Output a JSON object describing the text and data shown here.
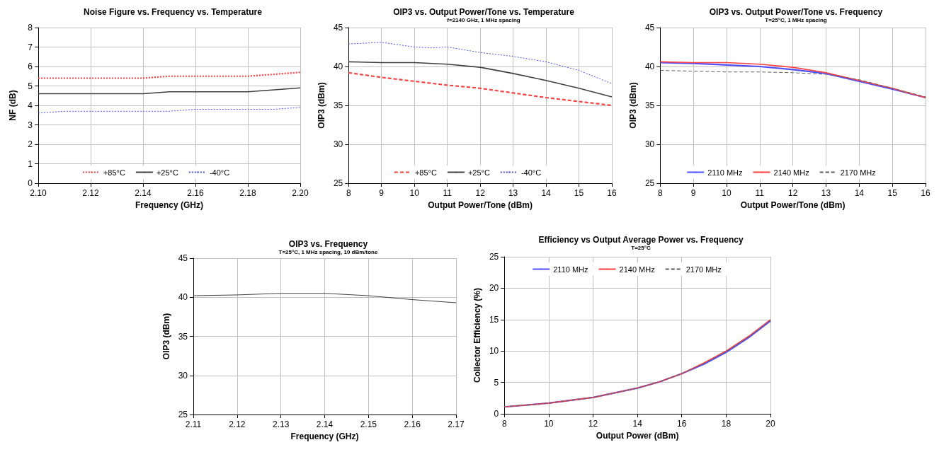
{
  "chart_data": [
    {
      "type": "line",
      "title": "Noise Figure vs. Frequency vs. Temperature",
      "xlabel": "Frequency (GHz)",
      "ylabel": "NF (dB)",
      "xlim": [
        2.1,
        2.2
      ],
      "xticks": [
        {
          "value": 2.1,
          "label": "2.10"
        },
        2.12,
        2.14,
        2.16,
        2.18,
        {
          "value": 2.2,
          "label": "2.20"
        }
      ],
      "ylim": [
        0,
        8
      ],
      "yticks": [
        0,
        1,
        2,
        3,
        4,
        5,
        6,
        7,
        8
      ],
      "grid": true,
      "legend": "bottom",
      "series": [
        {
          "name": "+85°C",
          "color": "#ff4040",
          "line_style": "dotted",
          "x": [
            2.1,
            2.14,
            2.15,
            2.18,
            2.19,
            2.2
          ],
          "values": [
            5.4,
            5.4,
            5.5,
            5.5,
            5.6,
            5.7
          ]
        },
        {
          "name": "+25°C",
          "color": "#404040",
          "line_style": "solid",
          "x": [
            2.1,
            2.14,
            2.15,
            2.18,
            2.19,
            2.2
          ],
          "values": [
            4.6,
            4.6,
            4.7,
            4.7,
            4.8,
            4.9
          ]
        },
        {
          "name": "-40°C",
          "color": "#5050ff",
          "line_style": "dotted",
          "x": [
            2.1,
            2.11,
            2.15,
            2.16,
            2.19,
            2.2
          ],
          "values": [
            3.6,
            3.7,
            3.7,
            3.8,
            3.8,
            3.9
          ]
        }
      ]
    },
    {
      "type": "line",
      "title": "OIP3 vs. Output Power/Tone vs. Temperature",
      "subtitle": "f=2140 GHz, 1 MHz spacing",
      "xlabel": "Output Power/Tone (dBm)",
      "ylabel": "OIP3 (dBm)",
      "xlim": [
        8,
        16
      ],
      "xticks": [
        8,
        9,
        10,
        11,
        12,
        13,
        14,
        15,
        16
      ],
      "ylim": [
        25,
        45
      ],
      "yticks": [
        25,
        30,
        35,
        40,
        45
      ],
      "grid": true,
      "legend": "bottom",
      "series": [
        {
          "name": "+85°C",
          "color": "#ff4040",
          "line_style": "dashed",
          "x": [
            8,
            9,
            10,
            11,
            12,
            13,
            14,
            15,
            16
          ],
          "values": [
            39.2,
            38.6,
            38.1,
            37.6,
            37.2,
            36.6,
            36.0,
            35.5,
            35.0
          ]
        },
        {
          "name": "+25°C",
          "color": "#404040",
          "line_style": "solid",
          "x": [
            8,
            9,
            10,
            11,
            12,
            13,
            14,
            15,
            16
          ],
          "values": [
            40.6,
            40.5,
            40.5,
            40.3,
            39.9,
            39.1,
            38.2,
            37.2,
            36.1
          ]
        },
        {
          "name": "-40°C",
          "color": "#5050ff",
          "line_style": "dotted",
          "x": [
            8,
            9,
            10,
            10.5,
            11,
            12,
            13,
            14,
            15,
            16
          ],
          "values": [
            42.9,
            43.1,
            42.5,
            42.4,
            42.5,
            41.8,
            41.3,
            40.6,
            39.5,
            37.8
          ]
        }
      ]
    },
    {
      "type": "line",
      "title": "OIP3 vs. Output Power/Tone vs. Frequency",
      "subtitle": "T=25°C, 1 MHz spacing",
      "xlabel": "Output Power/Tone (dBm)",
      "ylabel": "OIP3 (dBm)",
      "xlim": [
        8,
        16
      ],
      "xticks": [
        8,
        9,
        10,
        11,
        12,
        13,
        14,
        15,
        16
      ],
      "ylim": [
        25,
        45
      ],
      "yticks": [
        25,
        30,
        35,
        40,
        45
      ],
      "grid": true,
      "legend": "bottom",
      "series": [
        {
          "name": "2110 MHz",
          "color": "#5050ff",
          "line_style": "solid",
          "x": [
            8,
            9,
            10,
            11,
            12,
            13,
            14,
            15,
            16
          ],
          "values": [
            40.5,
            40.4,
            40.2,
            40.0,
            39.6,
            39.1,
            38.1,
            37.1,
            36.0
          ]
        },
        {
          "name": "2140 MHz",
          "color": "#ff4040",
          "line_style": "solid",
          "x": [
            8,
            9,
            10,
            11,
            12,
            13,
            14,
            15,
            16
          ],
          "values": [
            40.6,
            40.5,
            40.5,
            40.3,
            39.9,
            39.2,
            38.2,
            37.2,
            36.0
          ]
        },
        {
          "name": "2170 MHz",
          "color": "#606060",
          "line_style": "dashed",
          "x": [
            8,
            9,
            10,
            11,
            12,
            13,
            14,
            15,
            16
          ],
          "values": [
            39.5,
            39.4,
            39.3,
            39.3,
            39.2,
            39.0,
            38.3,
            37.2,
            36.1
          ]
        }
      ]
    },
    {
      "type": "line",
      "title": "OIP3 vs. Frequency",
      "subtitle": "T=25°C, 1 MHz spacing, 10 dBm/tone",
      "xlabel": "Frequency (GHz)",
      "ylabel": "OIP3 (dBm)",
      "xlim": [
        2.11,
        2.17
      ],
      "xticks": [
        2.11,
        2.12,
        2.13,
        2.14,
        2.15,
        2.16,
        2.17
      ],
      "ylim": [
        25,
        45
      ],
      "yticks": [
        25,
        30,
        35,
        40,
        45
      ],
      "grid": true,
      "series": [
        {
          "color": "#404040",
          "line_style": "solid",
          "x": [
            2.11,
            2.12,
            2.13,
            2.14,
            2.15,
            2.16,
            2.17
          ],
          "values": [
            40.2,
            40.3,
            40.5,
            40.5,
            40.2,
            39.7,
            39.3
          ]
        }
      ]
    },
    {
      "type": "line",
      "title": "Efficiency vs Output Average Power vs. Frequency",
      "subtitle": "T=25°C",
      "xlabel": "Output Power (dBm)",
      "ylabel": "Collector Efficiency (%)",
      "xlim": [
        8,
        20
      ],
      "xticks": [
        8,
        10,
        12,
        14,
        16,
        18,
        20
      ],
      "ylim": [
        0,
        25
      ],
      "yticks": [
        0,
        5,
        10,
        15,
        20,
        25
      ],
      "grid": true,
      "legend": "top",
      "series": [
        {
          "name": "2110 MHz",
          "color": "#5050ff",
          "line_style": "solid",
          "x": [
            8,
            10,
            12,
            14,
            15,
            16,
            17,
            18,
            19,
            20
          ],
          "values": [
            1.1,
            1.7,
            2.6,
            4.1,
            5.1,
            6.4,
            7.9,
            9.8,
            12.1,
            14.8
          ]
        },
        {
          "name": "2140 MHz",
          "color": "#ff4040",
          "line_style": "solid",
          "x": [
            8,
            10,
            12,
            14,
            15,
            16,
            17,
            18,
            19,
            20
          ],
          "values": [
            1.1,
            1.7,
            2.6,
            4.1,
            5.1,
            6.4,
            8.1,
            10.0,
            12.3,
            15.0
          ]
        },
        {
          "name": "2170 MHz",
          "color": "#606060",
          "line_style": "dashed",
          "x": [
            8,
            10,
            12,
            14,
            15,
            16,
            17,
            18,
            19,
            20
          ],
          "values": [
            1.1,
            1.7,
            2.6,
            4.1,
            5.1,
            6.4,
            8.0,
            9.9,
            12.2,
            14.9
          ]
        }
      ]
    }
  ]
}
